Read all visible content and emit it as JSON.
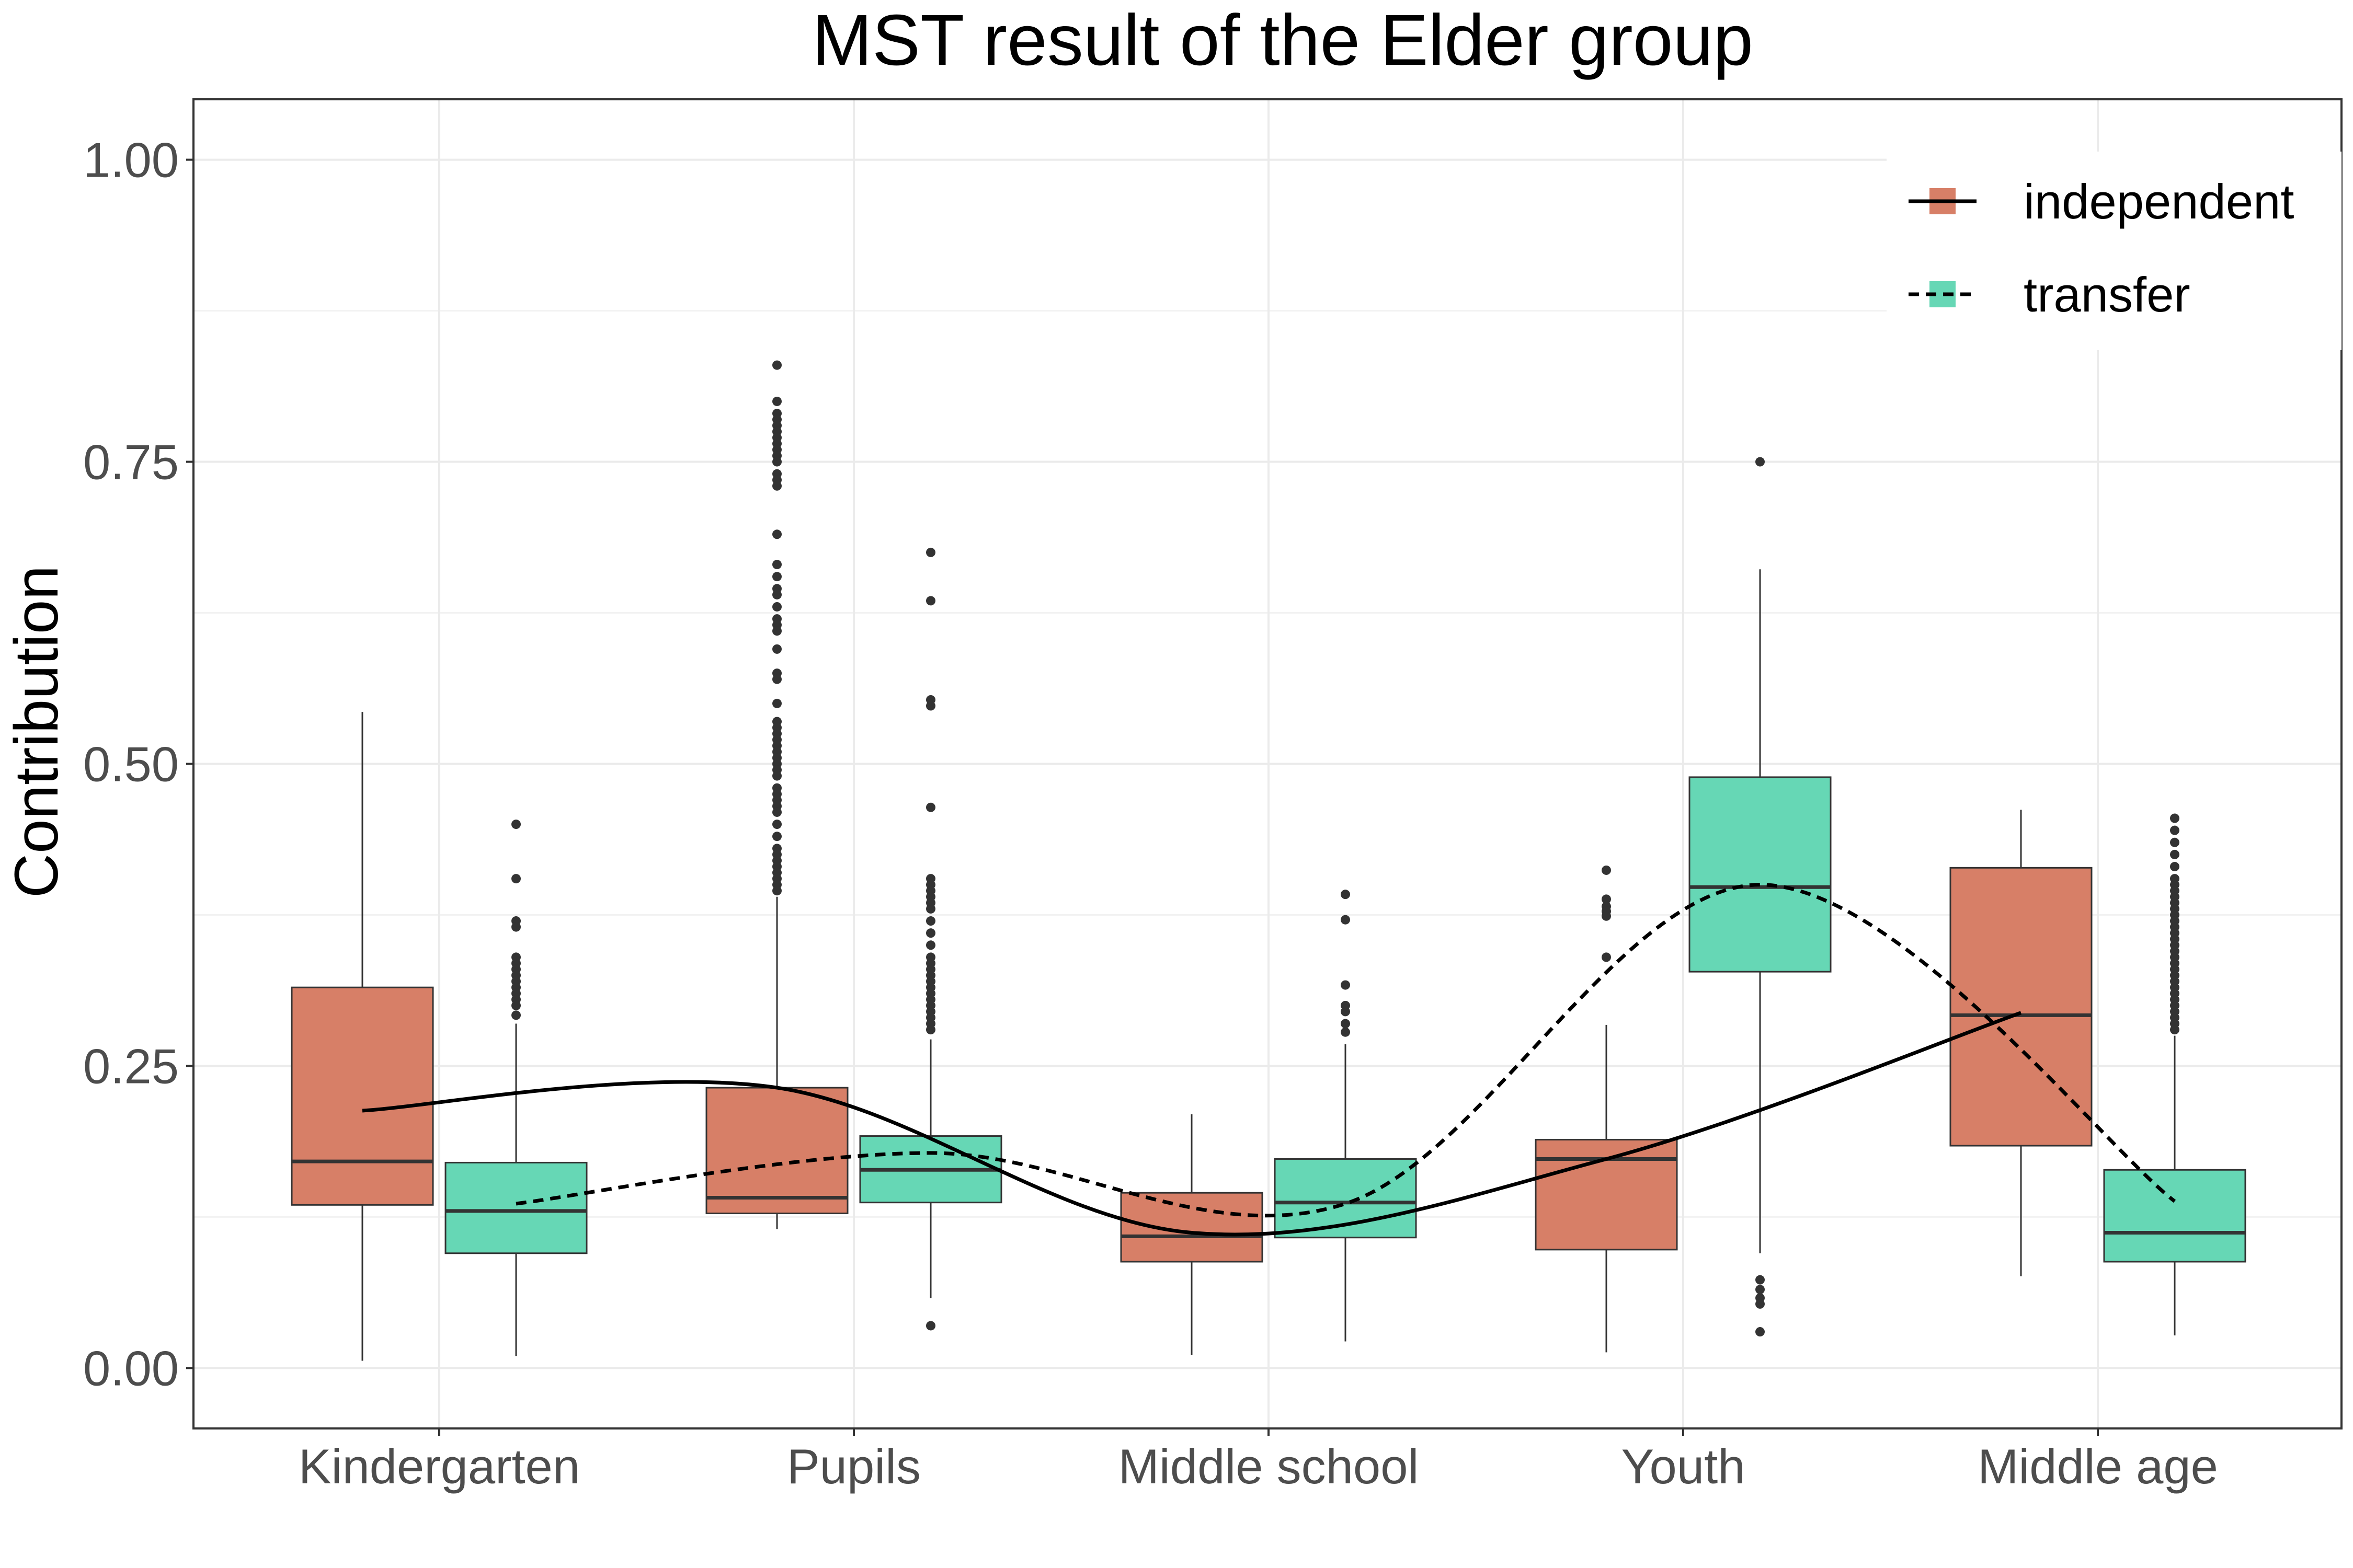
{
  "chart_data": {
    "type": "box",
    "title": "MST result of the Elder group",
    "xlabel": "",
    "ylabel": "Contribution",
    "ylim": [
      -0.05,
      1.05
    ],
    "yticks": [
      0.0,
      0.25,
      0.5,
      0.75,
      1.0
    ],
    "ytick_labels": [
      "0.00",
      "0.25",
      "0.50",
      "0.75",
      "1.00"
    ],
    "categories": [
      "Kindergarten",
      "Pupils",
      "Middle school",
      "Youth",
      "Middle age"
    ],
    "grid": true,
    "legend_position": "top-right",
    "series": [
      {
        "name": "independent",
        "color": "#D77F67",
        "line_style": "solid",
        "boxes": [
          {
            "whisker_low": 0.006,
            "q1": 0.135,
            "median": 0.171,
            "q3": 0.315,
            "whisker_high": 0.543,
            "outliers": []
          },
          {
            "whisker_low": 0.115,
            "q1": 0.128,
            "median": 0.141,
            "q3": 0.232,
            "whisker_high": 0.39,
            "outliers": [
              0.83,
              0.8,
              0.79,
              0.785,
              0.78,
              0.775,
              0.77,
              0.765,
              0.76,
              0.755,
              0.75,
              0.74,
              0.735,
              0.73,
              0.69,
              0.665,
              0.655,
              0.645,
              0.64,
              0.63,
              0.62,
              0.615,
              0.61,
              0.595,
              0.575,
              0.57,
              0.55,
              0.535,
              0.53,
              0.525,
              0.52,
              0.515,
              0.51,
              0.505,
              0.5,
              0.495,
              0.49,
              0.48,
              0.475,
              0.47,
              0.465,
              0.46,
              0.45,
              0.44,
              0.43,
              0.425,
              0.42,
              0.415,
              0.41,
              0.405,
              0.4,
              0.395
            ]
          },
          {
            "whisker_low": 0.011,
            "q1": 0.088,
            "median": 0.109,
            "q3": 0.145,
            "whisker_high": 0.21,
            "outliers": []
          },
          {
            "whisker_low": 0.013,
            "q1": 0.098,
            "median": 0.173,
            "q3": 0.189,
            "whisker_high": 0.284,
            "outliers": [
              0.412,
              0.388,
              0.382,
              0.378,
              0.374,
              0.34
            ]
          },
          {
            "whisker_low": 0.076,
            "q1": 0.184,
            "median": 0.292,
            "q3": 0.414,
            "whisker_high": 0.462,
            "outliers": []
          }
        ],
        "trend": [
          0.213,
          0.232,
          0.112,
          0.173,
          0.294
        ]
      },
      {
        "name": "transfer",
        "color": "#66D7B5",
        "line_style": "dashed",
        "boxes": [
          {
            "whisker_low": 0.01,
            "q1": 0.095,
            "median": 0.13,
            "q3": 0.17,
            "whisker_high": 0.285,
            "outliers": [
              0.45,
              0.405,
              0.37,
              0.365,
              0.34,
              0.335,
              0.33,
              0.325,
              0.32,
              0.315,
              0.31,
              0.305,
              0.3,
              0.292
            ]
          },
          {
            "whisker_low": 0.058,
            "q1": 0.137,
            "median": 0.164,
            "q3": 0.192,
            "whisker_high": 0.272,
            "outliers": [
              0.675,
              0.635,
              0.553,
              0.548,
              0.464,
              0.405,
              0.4,
              0.395,
              0.39,
              0.385,
              0.38,
              0.37,
              0.36,
              0.35,
              0.34,
              0.335,
              0.33,
              0.325,
              0.32,
              0.315,
              0.31,
              0.305,
              0.3,
              0.295,
              0.29,
              0.285,
              0.28,
              0.035
            ]
          },
          {
            "whisker_low": 0.022,
            "q1": 0.108,
            "median": 0.137,
            "q3": 0.173,
            "whisker_high": 0.268,
            "outliers": [
              0.392,
              0.371,
              0.317,
              0.3,
              0.295,
              0.285,
              0.278
            ]
          },
          {
            "whisker_low": 0.095,
            "q1": 0.328,
            "median": 0.398,
            "q3": 0.489,
            "whisker_high": 0.661,
            "outliers": [
              0.75,
              0.073,
              0.065,
              0.058,
              0.053,
              0.03
            ]
          },
          {
            "whisker_low": 0.027,
            "q1": 0.088,
            "median": 0.112,
            "q3": 0.164,
            "whisker_high": 0.275,
            "outliers": [
              0.455,
              0.445,
              0.435,
              0.425,
              0.415,
              0.405,
              0.4,
              0.395,
              0.39,
              0.385,
              0.38,
              0.375,
              0.37,
              0.365,
              0.36,
              0.355,
              0.35,
              0.345,
              0.34,
              0.335,
              0.33,
              0.325,
              0.32,
              0.315,
              0.31,
              0.305,
              0.3,
              0.295,
              0.29,
              0.285,
              0.28
            ]
          }
        ],
        "trend": [
          0.136,
          0.178,
          0.136,
          0.4,
          0.138
        ]
      }
    ]
  }
}
